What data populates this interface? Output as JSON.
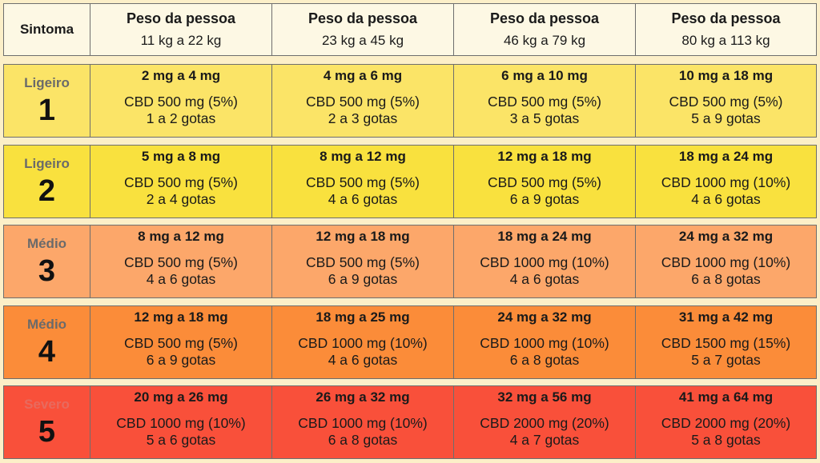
{
  "header": {
    "symptom_label": "Sintoma",
    "columns": [
      {
        "title": "Peso da pessoa",
        "range": "11 kg a 22 kg"
      },
      {
        "title": "Peso da pessoa",
        "range": "23 kg a 45 kg"
      },
      {
        "title": "Peso da pessoa",
        "range": "46 kg a 79 kg"
      },
      {
        "title": "Peso da pessoa",
        "range": "80 kg a 113 kg"
      }
    ]
  },
  "rows": [
    {
      "severity": "Ligeiro",
      "level": "1",
      "color": "#fbe467",
      "cells": [
        {
          "dose": "2 mg a 4 mg",
          "cbd": "CBD 500 mg (5%)",
          "drops": "1 a 2 gotas"
        },
        {
          "dose": "4 mg a 6 mg",
          "cbd": "CBD 500 mg (5%)",
          "drops": "2 a 3 gotas"
        },
        {
          "dose": "6 mg a 10 mg",
          "cbd": "CBD 500 mg (5%)",
          "drops": "3 a 5 gotas"
        },
        {
          "dose": "10 mg a 18 mg",
          "cbd": "CBD 500 mg (5%)",
          "drops": "5 a 9 gotas"
        }
      ]
    },
    {
      "severity": "Ligeiro",
      "level": "2",
      "color": "#f9e13e",
      "cells": [
        {
          "dose": "5 mg a 8 mg",
          "cbd": "CBD 500 mg (5%)",
          "drops": "2 a 4 gotas"
        },
        {
          "dose": "8 mg a 12 mg",
          "cbd": "CBD 500 mg (5%)",
          "drops": "4 a 6 gotas"
        },
        {
          "dose": "12 mg a 18 mg",
          "cbd": "CBD 500 mg (5%)",
          "drops": "6 a 9 gotas"
        },
        {
          "dose": "18 mg a 24 mg",
          "cbd": "CBD 1000 mg (10%)",
          "drops": "4 a 6 gotas"
        }
      ]
    },
    {
      "severity": "Médio",
      "level": "3",
      "color": "#fca76a",
      "cells": [
        {
          "dose": "8 mg a 12 mg",
          "cbd": "CBD 500 mg (5%)",
          "drops": "4 a 6 gotas"
        },
        {
          "dose": "12 mg a 18 mg",
          "cbd": "CBD 500 mg (5%)",
          "drops": "6 a 9 gotas"
        },
        {
          "dose": "18 mg a 24 mg",
          "cbd": "CBD 1000 mg (10%)",
          "drops": "4 a 6 gotas"
        },
        {
          "dose": "24 mg a 32 mg",
          "cbd": "CBD 1000 mg (10%)",
          "drops": "6 a 8 gotas"
        }
      ]
    },
    {
      "severity": "Médio",
      "level": "4",
      "color": "#fb8c39",
      "cells": [
        {
          "dose": "12 mg a 18 mg",
          "cbd": "CBD 500 mg (5%)",
          "drops": "6 a 9 gotas"
        },
        {
          "dose": "18 mg a 25 mg",
          "cbd": "CBD 1000 mg (10%)",
          "drops": "4 a 6 gotas"
        },
        {
          "dose": "24 mg a 32 mg",
          "cbd": "CBD 1000 mg (10%)",
          "drops": "6 a 8 gotas"
        },
        {
          "dose": "31 mg a 42 mg",
          "cbd": "CBD 1500 mg (15%)",
          "drops": "5 a 7 gotas"
        }
      ]
    },
    {
      "severity": "Severo",
      "level": "5",
      "color": "#f9503a",
      "cells": [
        {
          "dose": "20 mg a 26 mg",
          "cbd": "CBD 1000 mg (10%)",
          "drops": "5 a 6 gotas"
        },
        {
          "dose": "26 mg a 32 mg",
          "cbd": "CBD 1000 mg (10%)",
          "drops": "6 a 8 gotas"
        },
        {
          "dose": "32 mg a 56 mg",
          "cbd": "CBD 2000 mg (20%)",
          "drops": "4 a 7 gotas"
        },
        {
          "dose": "41 mg a 64 mg",
          "cbd": "CBD 2000 mg (20%)",
          "drops": "5 a 8 gotas"
        }
      ]
    }
  ]
}
